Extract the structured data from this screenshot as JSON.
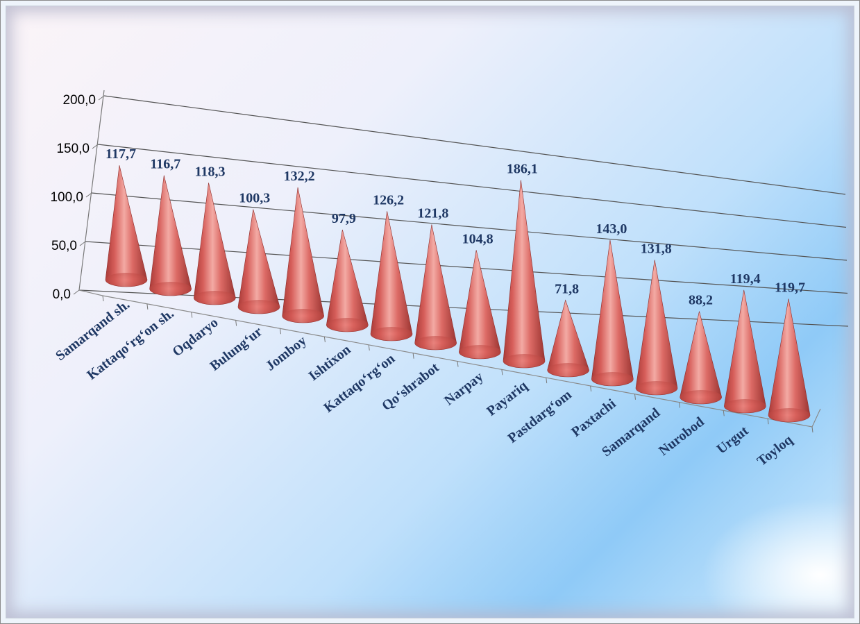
{
  "chart_data": {
    "type": "bar",
    "shape": "cone",
    "perspective": "3d",
    "categories": [
      "Samarqand sh.",
      "Kattaqo‘rg‘on sh.",
      "Oqdaryo",
      "Bulung‘ur",
      "Jomboy",
      "Ishtixon",
      "Kattaqo‘rg‘on",
      "Qo‘shrabot",
      "Narpay",
      "Payariq",
      "Pastdarg‘om",
      "Paxtachi",
      "Samarqand",
      "Nurobod",
      "Urgut",
      "Toyloq"
    ],
    "values": [
      117.7,
      116.7,
      118.3,
      100.3,
      132.2,
      97.9,
      126.2,
      121.8,
      104.8,
      186.1,
      71.8,
      143.0,
      131.8,
      88.2,
      119.4,
      119.7
    ],
    "value_labels": [
      "117,7",
      "116,7",
      "118,3",
      "100,3",
      "132,2",
      "97,9",
      "126,2",
      "121,8",
      "104,8",
      "186,1",
      "71,8",
      "143,0",
      "131,8",
      "88,2",
      "119,4",
      "119,7"
    ],
    "y_ticks": [
      "0,0",
      "50,0",
      "100,0",
      "150,0",
      "200,0"
    ],
    "ylim": [
      0,
      200
    ],
    "grid": true,
    "legend": "none",
    "title": "",
    "xlabel": "",
    "ylabel": "",
    "colors": {
      "cone_base": "#c0504d",
      "label_text": "#1f3864",
      "axis_text": "#000000",
      "grid": "#555555"
    }
  }
}
